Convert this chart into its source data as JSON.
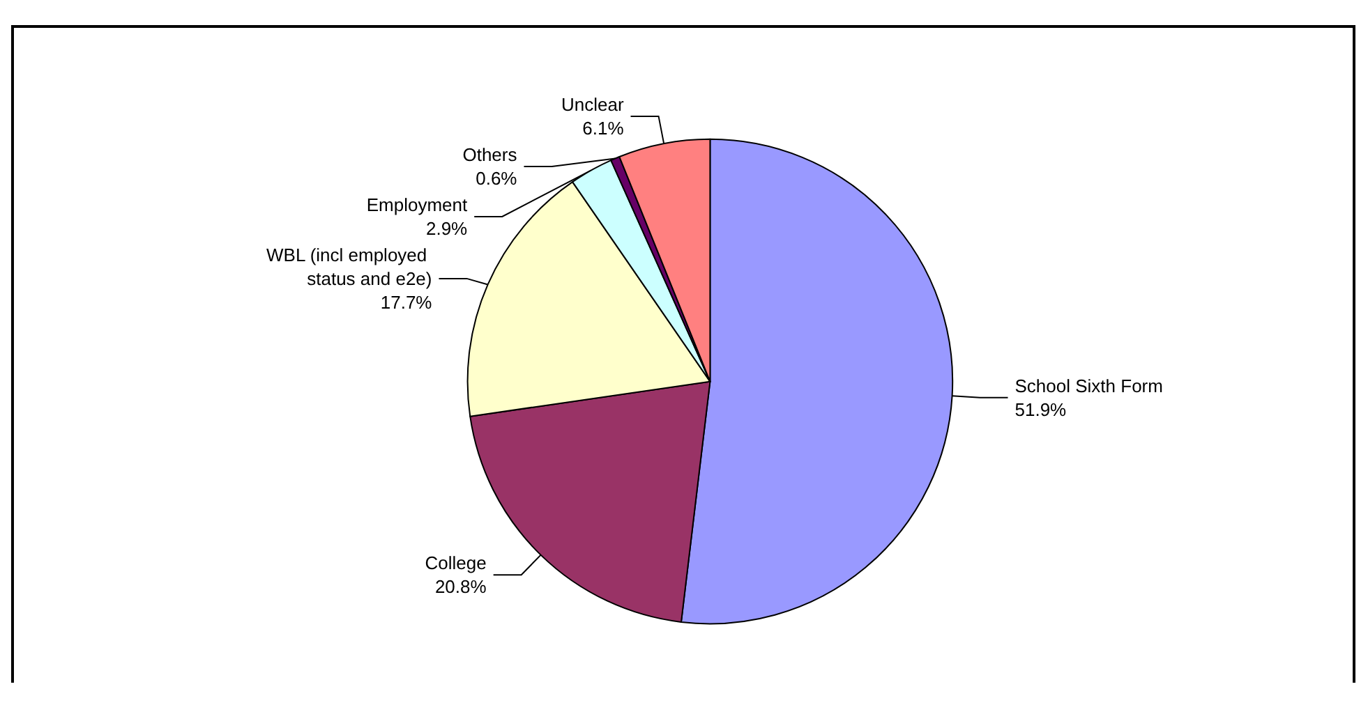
{
  "chart_data": {
    "type": "pie",
    "categories": [
      "School Sixth Form",
      "College",
      "WBL (incl employed status and e2e)",
      "Employment",
      "Others",
      "Unclear"
    ],
    "values": [
      51.9,
      20.8,
      17.7,
      2.9,
      0.6,
      6.1
    ],
    "colors": [
      "#9999ff",
      "#993366",
      "#ffffcc",
      "#ccffff",
      "#660066",
      "#ff8080"
    ],
    "value_labels": [
      "51.9%",
      "20.8%",
      "17.7%",
      "2.9%",
      "0.6%",
      "6.1%"
    ],
    "legend": false
  }
}
